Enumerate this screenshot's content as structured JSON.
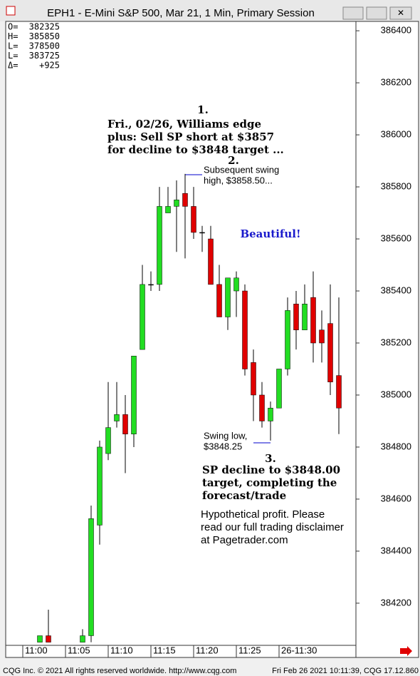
{
  "window": {
    "title": "EPH1 - E-Mini S&P 500, Mar 21, 1 Min, Primary Session"
  },
  "stats": [
    {
      "label": "O=",
      "value": "382325"
    },
    {
      "label": "H=",
      "value": "385850"
    },
    {
      "label": "L=",
      "value": "378500"
    },
    {
      "label": "L=",
      "value": "383725"
    },
    {
      "label": "Δ=",
      "value": "+925"
    }
  ],
  "chart_data": {
    "type": "candlestick",
    "categories": [
      "11:00",
      null,
      null,
      null,
      null,
      "11:05",
      null,
      null,
      null,
      null,
      "11:10",
      null,
      null,
      null,
      null,
      "11:15",
      null,
      null,
      null,
      null,
      "11:20",
      null,
      null,
      null,
      null,
      "11:25",
      null,
      null,
      null,
      null,
      "26-11:30",
      null,
      null,
      null,
      null,
      null,
      null,
      null
    ],
    "open": [
      null,
      null,
      384050,
      384075,
      null,
      null,
      null,
      384050,
      384075,
      384500,
      384775,
      384900,
      384925,
      384850,
      385175,
      385425,
      385425,
      385700,
      385725,
      385775,
      385725,
      385625,
      385600,
      385425,
      385300,
      385400,
      385400,
      385125,
      385000,
      384900,
      384950,
      385100,
      385350,
      385250,
      385375,
      385250,
      385275,
      385075
    ],
    "high": [
      null,
      null,
      384075,
      384175,
      null,
      null,
      null,
      384100,
      384575,
      384825,
      385050,
      385050,
      385000,
      385150,
      385500,
      385475,
      385800,
      385800,
      385825,
      385850,
      385800,
      385650,
      385650,
      385500,
      385450,
      385475,
      385425,
      385175,
      385050,
      384975,
      385100,
      385375,
      385400,
      385425,
      385475,
      385325,
      385425,
      385375
    ],
    "low": [
      null,
      null,
      384050,
      384050,
      null,
      null,
      null,
      384050,
      384050,
      384425,
      384750,
      384875,
      384700,
      384800,
      385175,
      385400,
      385400,
      385700,
      385550,
      385525,
      385600,
      385550,
      385425,
      385300,
      385250,
      385300,
      385075,
      384900,
      384875,
      384825,
      384950,
      385075,
      385175,
      385250,
      385125,
      385125,
      385000,
      384850
    ],
    "close": [
      null,
      null,
      384075,
      384050,
      null,
      null,
      null,
      384075,
      384525,
      384800,
      384875,
      384925,
      384850,
      385150,
      385425,
      385425,
      385725,
      385725,
      385750,
      385725,
      385625,
      385625,
      385425,
      385300,
      385450,
      385450,
      385100,
      385000,
      384900,
      384950,
      385100,
      385325,
      385250,
      385350,
      385200,
      385200,
      385050,
      384950
    ],
    "up_color": "#22dd22",
    "down_color": "#e00000",
    "ylim": [
      384038,
      386436
    ],
    "yticks": [
      384200,
      384400,
      384600,
      384800,
      385000,
      385200,
      385400,
      385600,
      385800,
      386000,
      386200,
      386400
    ]
  },
  "annotations": {
    "n1": "1.",
    "a1": [
      "Fri., 02/26, Williams edge",
      "plus: Sell SP short at $3857",
      "for decline to $3848 target ..."
    ],
    "n2": "2.",
    "a2": [
      "Subsequent swing",
      "high, $3858.50..."
    ],
    "beautiful": "Beautiful!",
    "low": [
      "Swing low,",
      "$3848.25"
    ],
    "n3": "3.",
    "a3": [
      "SP decline to $3848.00",
      "target, completing the",
      "forecast/trade"
    ],
    "disclaimer": [
      "Hypothetical profit. Please",
      "read our full trading disclaimer",
      "at Pagetrader.com"
    ]
  },
  "footer": {
    "left": "CQG Inc. © 2021 All rights reserved worldwide. http://www.cqg.com",
    "right": "Fri Feb 26 2021 10:11:39, CQG 17.12.860"
  }
}
